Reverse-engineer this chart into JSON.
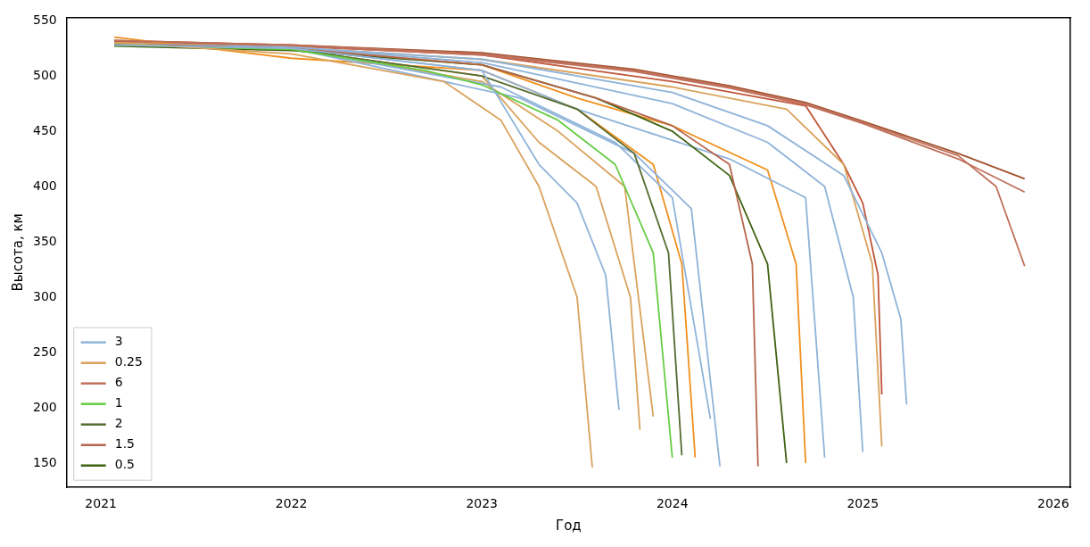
{
  "chart_data": {
    "type": "line",
    "xlabel": "Год",
    "ylabel": "Высота, км",
    "xlim": [
      2020.82,
      2026.09
    ],
    "xticks": [
      2021,
      2022,
      2023,
      2024,
      2025,
      2026
    ],
    "ylim": [
      128,
      553
    ],
    "yticks": [
      150,
      200,
      250,
      300,
      350,
      400,
      450,
      500,
      550
    ],
    "grid": false,
    "legend": "bottom left",
    "marker": "none",
    "line_style": "solid",
    "series": [
      {
        "name": "3",
        "color": "#8fb3d9",
        "x": [
          2021.07,
          2022,
          2023,
          2023.3,
          2023.5,
          2023.65,
          2023.72
        ],
        "values": [
          528,
          525,
          505,
          420,
          385,
          320,
          198
        ]
      },
      {
        "name": "0.25",
        "color": "#d9a25c",
        "x": [
          2021.07,
          2022,
          2022.8,
          2023.1,
          2023.3,
          2023.5,
          2023.58
        ],
        "values": [
          530,
          520,
          495,
          460,
          400,
          300,
          146
        ]
      },
      {
        "name": "6",
        "color": "#c0705a",
        "x": [
          2021.07,
          2022,
          2023,
          2023.8,
          2024.3,
          2024.7,
          2025,
          2025.5,
          2025.7,
          2025.85
        ],
        "values": [
          532,
          528,
          520,
          505,
          490,
          475,
          458,
          428,
          400,
          328
        ]
      },
      {
        "name": "1",
        "color": "#66cc44",
        "x": [
          2021.07,
          2022,
          2022.7,
          2023,
          2023.4,
          2023.7,
          2023.9,
          2024
        ],
        "values": [
          528,
          524,
          505,
          492,
          460,
          420,
          340,
          155
        ]
      },
      {
        "name": "2",
        "color": "#556b2f",
        "x": [
          2021.07,
          2022,
          2023,
          2023.5,
          2023.8,
          2023.98,
          2024.05
        ],
        "values": [
          528,
          524,
          500,
          470,
          430,
          340,
          157
        ]
      },
      {
        "name": "1.5",
        "color": "#b5654a",
        "x": [
          2021.07,
          2022,
          2023,
          2023.6,
          2024,
          2024.3,
          2024.42,
          2024.45
        ],
        "values": [
          529,
          525,
          510,
          480,
          455,
          420,
          330,
          147
        ]
      },
      {
        "name": "0.5",
        "color": "#3f6212",
        "x": [
          2021.07,
          2022,
          2023,
          2023.6,
          2024,
          2024.3,
          2024.5,
          2024.6
        ],
        "values": [
          527,
          523,
          510,
          480,
          450,
          410,
          330,
          150
        ]
      },
      {
        "color": "#8fb3d9",
        "x": [
          2021.07,
          2022,
          2023,
          2024,
          2024.5,
          2024.9,
          2025.1,
          2025.2,
          2025.23
        ],
        "values": [
          529,
          526,
          515,
          485,
          455,
          410,
          340,
          280,
          203
        ]
      },
      {
        "color": "#8fb3d9",
        "x": [
          2021.07,
          2022,
          2023,
          2024,
          2024.5,
          2024.8,
          2024.95,
          2025
        ],
        "values": [
          529,
          526,
          512,
          475,
          440,
          400,
          300,
          160
        ]
      },
      {
        "color": "#8fb3d9",
        "x": [
          2021.07,
          2022,
          2023,
          2023.5,
          2024.3,
          2024.7,
          2024.8
        ],
        "values": [
          529,
          525,
          505,
          470,
          425,
          390,
          155
        ]
      },
      {
        "color": "#8fb3d9",
        "x": [
          2021.07,
          2022,
          2023.2,
          2023.8,
          2024.1,
          2024.25
        ],
        "values": [
          529,
          525,
          480,
          430,
          380,
          147
        ]
      },
      {
        "color": "#8fb3d9",
        "x": [
          2021.07,
          2022,
          2023.1,
          2023.7,
          2024,
          2024.2
        ],
        "values": [
          529,
          525,
          490,
          440,
          390,
          190
        ]
      },
      {
        "color": "#d9a25c",
        "x": [
          2021.07,
          2022,
          2023,
          2023.3,
          2023.6,
          2023.78,
          2023.83
        ],
        "values": [
          529,
          524,
          500,
          440,
          400,
          300,
          180
        ]
      },
      {
        "color": "#f0901e",
        "x": [
          2021.07,
          2022,
          2023,
          2023.5,
          2023.9,
          2024.05,
          2024.12
        ],
        "values": [
          535,
          516,
          505,
          470,
          420,
          330,
          155
        ]
      },
      {
        "color": "#f0901e",
        "x": [
          2021.07,
          2022,
          2023,
          2023.5,
          2024,
          2024.5,
          2024.65,
          2024.7
        ],
        "values": [
          529,
          525,
          510,
          480,
          455,
          415,
          330,
          150
        ]
      },
      {
        "color": "#d9a25c",
        "x": [
          2021.07,
          2022,
          2023,
          2024,
          2024.6,
          2024.9,
          2025.05,
          2025.1
        ],
        "values": [
          530,
          526,
          515,
          490,
          470,
          420,
          330,
          165
        ]
      },
      {
        "color": "#d9a25c",
        "x": [
          2021.07,
          2022,
          2023,
          2023.4,
          2023.75,
          2023.9
        ],
        "values": [
          529,
          524,
          495,
          450,
          400,
          192
        ]
      },
      {
        "color": "#a0522d",
        "x": [
          2021.07,
          2022,
          2023,
          2023.8,
          2024.3,
          2024.7,
          2025,
          2025.5,
          2025.85
        ],
        "values": [
          532,
          528,
          521,
          506,
          491,
          476,
          459,
          430,
          407
        ]
      },
      {
        "color": "#c0705a",
        "x": [
          2021.07,
          2022,
          2023,
          2023.8,
          2024.3,
          2024.7,
          2025,
          2025.5,
          2025.85
        ],
        "values": [
          531,
          527,
          519,
          504,
          489,
          474,
          457,
          425,
          395
        ]
      },
      {
        "color": "#c0553a",
        "x": [
          2021.07,
          2022,
          2023,
          2024,
          2024.7,
          2024.9,
          2025,
          2025.08,
          2025.1
        ],
        "values": [
          531,
          527,
          519,
          495,
          473,
          420,
          385,
          320,
          212
        ]
      }
    ]
  }
}
